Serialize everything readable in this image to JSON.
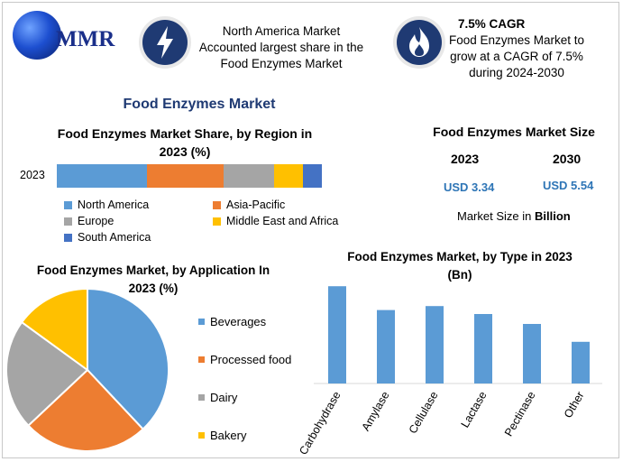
{
  "brand": {
    "logo_text": "MMR"
  },
  "highlight1": {
    "line1": "North America Market",
    "line2": "Accounted largest share in the",
    "line3": "Food Enzymes Market",
    "icon": "lightning-icon"
  },
  "highlight2": {
    "title": "7.5% CAGR",
    "line1": "Food Enzymes Market to",
    "line2": "grow at a CAGR of 7.5%",
    "line3": "during 2024-2030",
    "icon": "flame-icon"
  },
  "main_title": "Food Enzymes Market",
  "market_size": {
    "title": "Food Enzymes Market Size",
    "year1": "2023",
    "year2": "2030",
    "value1": "USD 3.34",
    "value2": "USD 5.54",
    "note_prefix": "Market Size in ",
    "note_unit": "Billion"
  },
  "chart_data": [
    {
      "type": "bar",
      "orientation": "horizontal-stacked",
      "title_line1": "Food Enzymes Market Share, by Region in",
      "title_line2": "2023 (%)",
      "category": "2023",
      "series": [
        {
          "name": "North America",
          "value": 34,
          "color": "#5b9bd5"
        },
        {
          "name": "Asia-Pacific",
          "value": 29,
          "color": "#ed7d31"
        },
        {
          "name": "Europe",
          "value": 19,
          "color": "#a5a5a5"
        },
        {
          "name": "Middle East and Africa",
          "value": 11,
          "color": "#ffc000"
        },
        {
          "name": "South America",
          "value": 7,
          "color": "#4472c4"
        }
      ]
    },
    {
      "type": "pie",
      "title_line1": "Food Enzymes Market, by Application In",
      "title_line2": "2023 (%)",
      "slices": [
        {
          "name": "Beverages",
          "value": 38,
          "color": "#5b9bd5"
        },
        {
          "name": "Processed food",
          "value": 25,
          "color": "#ed7d31"
        },
        {
          "name": "Dairy",
          "value": 22,
          "color": "#a5a5a5"
        },
        {
          "name": "Bakery",
          "value": 15,
          "color": "#ffc000"
        }
      ]
    },
    {
      "type": "bar",
      "title_line1": "Food Enzymes Market, by Type in 2023",
      "title_line2": "(Bn)",
      "categories": [
        "Carbohydrase",
        "Amylase",
        "Cellulase",
        "Lactase",
        "Pectinase",
        "Other"
      ],
      "values": [
        0.98,
        0.74,
        0.78,
        0.7,
        0.6,
        0.42
      ],
      "ylim": [
        0,
        1.0
      ],
      "color": "#5b9bd5"
    }
  ]
}
